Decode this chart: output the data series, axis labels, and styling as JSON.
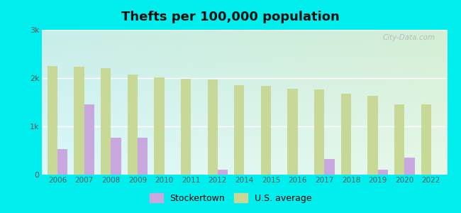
{
  "title": "Thefts per 100,000 population",
  "years": [
    2006,
    2007,
    2008,
    2009,
    2010,
    2011,
    2012,
    2014,
    2015,
    2016,
    2017,
    2018,
    2019,
    2020,
    2022
  ],
  "stockertown": [
    530,
    1450,
    760,
    760,
    0,
    0,
    100,
    0,
    0,
    0,
    320,
    0,
    100,
    360,
    0
  ],
  "us_average": [
    2250,
    2230,
    2200,
    2080,
    2020,
    1990,
    1970,
    1860,
    1840,
    1780,
    1760,
    1680,
    1630,
    1450,
    1460
  ],
  "stockertown_color": "#c9a8e0",
  "us_average_color": "#c8d896",
  "outer_bg": "#00eeee",
  "ylim": [
    0,
    3000
  ],
  "yticks": [
    0,
    1000,
    2000,
    3000
  ],
  "ytick_labels": [
    "0",
    "1k",
    "2k",
    "3k"
  ],
  "title_fontsize": 13,
  "legend_fontsize": 9,
  "bar_width": 0.38,
  "grad_top": "#c8e8c0",
  "grad_bottom": "#e8f8e8",
  "grad_left": "#c8e8d0",
  "grad_right": "#e0f0f8"
}
